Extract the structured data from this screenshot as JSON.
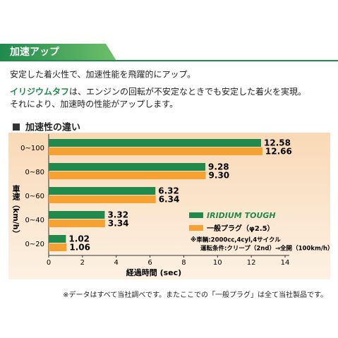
{
  "header": {
    "title": "加速アップ"
  },
  "intro": {
    "lead": "安定した着火性で、加速性能を飛躍的にアップ。",
    "line2": [
      "イリジウムタフ",
      "は、エンジンの回転が不安定なときでも安定した着火を実現。"
    ],
    "line3": "それにより、加速時の性能がアップします。"
  },
  "section_title": "加速性の違い",
  "chart_data": {
    "type": "hbar",
    "categories": [
      "0~100",
      "0~80",
      "0~60",
      "0~40",
      "0~20"
    ],
    "series": [
      {
        "name": "IRIDIUM TOUGH",
        "color": "#1f8a4c",
        "values": [
          12.58,
          9.28,
          6.32,
          3.32,
          1.02
        ],
        "value_labels": [
          "12.58",
          "9.28",
          "6.32",
          "3.32",
          "1.02"
        ]
      },
      {
        "name": "一般プラグ（φ2.5）",
        "color": "#f5a232",
        "values": [
          12.66,
          9.3,
          6.34,
          3.34,
          1.06
        ],
        "value_labels": [
          "12.66",
          "9.30",
          "6.34",
          "3.34",
          "1.06"
        ]
      }
    ],
    "xlim": [
      0,
      14
    ],
    "xticks": [
      0,
      2,
      4,
      6,
      8,
      10,
      12,
      14
    ],
    "xlabel": "経過時間 (sec)",
    "ylabel": "車速（km/h）",
    "notes": [
      "※車輌:2000cc,4cyl,4サイクル",
      "運転条件:クリープ（2nd）→全開（100km/h）"
    ]
  },
  "footnote": "※データはすべて当社調べです。またここでの「一般プラグ」は全て当社製品です。"
}
